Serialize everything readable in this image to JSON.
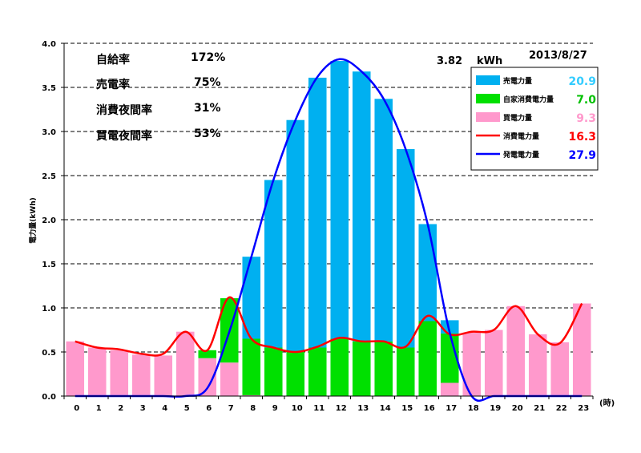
{
  "chart_data": {
    "type": "bar",
    "date": "2013/8/27",
    "peak_label": "3.82",
    "peak_unit": "kWh",
    "ylabel": "電力量(kWh)",
    "xunit": "(時)",
    "ylim": [
      0,
      4.0
    ],
    "yticks": [
      "0.0",
      "0.5",
      "1.0",
      "1.5",
      "2.0",
      "2.5",
      "3.0",
      "3.5",
      "4.0"
    ],
    "categories": [
      "0",
      "1",
      "2",
      "3",
      "4",
      "5",
      "6",
      "7",
      "8",
      "9",
      "10",
      "11",
      "12",
      "13",
      "14",
      "15",
      "16",
      "17",
      "18",
      "19",
      "20",
      "21",
      "22",
      "23"
    ],
    "stats": [
      {
        "label": "自給率",
        "value": "172%"
      },
      {
        "label": "売電率",
        "value": "75%"
      },
      {
        "label": "消費夜間率",
        "value": "31%"
      },
      {
        "label": "買電夜間率",
        "value": "53%"
      }
    ],
    "legend": [
      {
        "name": "売電力量",
        "total": "20.9",
        "color": "#00b0f0",
        "total_color": "#33ccff",
        "kind": "bar"
      },
      {
        "name": "自家消費電力量",
        "total": "7.0",
        "color": "#00e000",
        "total_color": "#00c000",
        "kind": "bar"
      },
      {
        "name": "買電力量",
        "total": "9.3",
        "color": "#ff99cc",
        "total_color": "#ff99cc",
        "kind": "bar"
      },
      {
        "name": "消費電力量",
        "total": "16.3",
        "color": "#ff0000",
        "total_color": "#ff0000",
        "kind": "line"
      },
      {
        "name": "発電電力量",
        "total": "27.9",
        "color": "#0000ff",
        "total_color": "#0000ff",
        "kind": "line"
      }
    ],
    "series": [
      {
        "name": "買電力量",
        "stack": 0,
        "values": [
          0.62,
          0.55,
          0.52,
          0.47,
          0.46,
          0.73,
          0.43,
          0.38,
          0.01,
          0,
          0,
          0,
          0,
          0,
          0,
          0,
          0,
          0.15,
          0.72,
          0.75,
          1.02,
          0.7,
          0.61,
          1.05
        ]
      },
      {
        "name": "自家消費電力量",
        "stack": 1,
        "values": [
          0,
          0,
          0,
          0,
          0,
          0,
          0.09,
          0.73,
          0.64,
          0.55,
          0.5,
          0.55,
          0.65,
          0.62,
          0.62,
          0.55,
          0.85,
          0.56,
          0,
          0,
          0,
          0,
          0,
          0
        ]
      },
      {
        "name": "売電力量",
        "stack": 2,
        "values": [
          0,
          0,
          0,
          0,
          0,
          0,
          0,
          0,
          0.93,
          1.9,
          2.63,
          3.06,
          3.15,
          3.06,
          2.75,
          2.25,
          1.1,
          0.15,
          0,
          0,
          0,
          0,
          0,
          0
        ]
      },
      {
        "name": "消費電力量",
        "values": [
          0.62,
          0.55,
          0.53,
          0.48,
          0.48,
          0.73,
          0.52,
          1.12,
          0.65,
          0.55,
          0.5,
          0.56,
          0.66,
          0.62,
          0.62,
          0.56,
          0.91,
          0.7,
          0.73,
          0.75,
          1.02,
          0.7,
          0.6,
          1.05
        ]
      },
      {
        "name": "発電電力量",
        "values": [
          0,
          0,
          0,
          0,
          0,
          0,
          0.09,
          0.73,
          1.58,
          2.45,
          3.13,
          3.62,
          3.82,
          3.68,
          3.37,
          2.8,
          1.95,
          0.72,
          0,
          0,
          0,
          0,
          0,
          0
        ]
      }
    ]
  }
}
